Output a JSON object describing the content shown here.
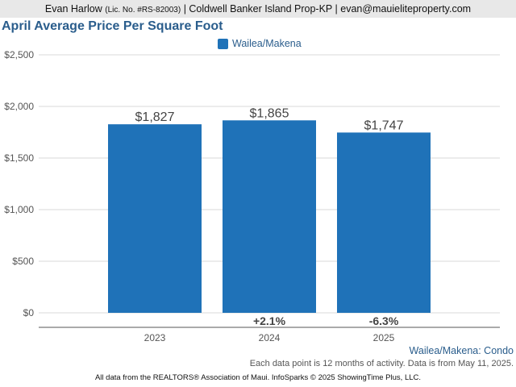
{
  "header": {
    "name": "Evan Harlow",
    "license": "(Lic. No. #RS-82003)",
    "rest": "| Coldwell Banker Island Prop-KP | evan@mauieliteproperty.com"
  },
  "colors": {
    "bar": "#1f72b8",
    "title": "#2a5d8c"
  },
  "chart_data": {
    "type": "bar",
    "title": "April Average Price Per Square Foot",
    "categories": [
      "2023",
      "2024",
      "2025"
    ],
    "series": [
      {
        "name": "Wailea/Makena",
        "values": [
          1827,
          1865,
          1747
        ]
      }
    ],
    "data_labels": [
      "$1,827",
      "$1,865",
      "$1,747"
    ],
    "change_labels": [
      "",
      "+2.1%",
      "-6.3%"
    ],
    "yticks": [
      0,
      500,
      1000,
      1500,
      2000,
      2500
    ],
    "ytick_labels": [
      "$0",
      "$500",
      "$1,000",
      "$1,500",
      "$2,000",
      "$2,500"
    ],
    "ylim": [
      0,
      2500
    ],
    "grid": true,
    "legend": "top-center"
  },
  "subtitle": "Wailea/Makena: Condo",
  "note": "Each data point is 12 months of activity. Data is from May 11, 2025.",
  "footer": "All data from the REALTORS® Association of Maui. InfoSparks © 2025 ShowingTime Plus, LLC."
}
